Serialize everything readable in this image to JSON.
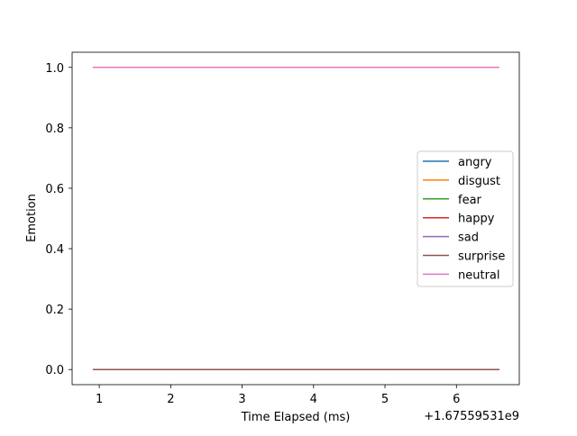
{
  "chart_data": {
    "type": "line",
    "xlabel": "Time Elapsed (ms)",
    "ylabel": "Emotion",
    "x_offset_label": "+1.67559531e9",
    "xlim": [
      0.62,
      6.88
    ],
    "ylim": [
      -0.05,
      1.05
    ],
    "x_ticks": [
      1,
      2,
      3,
      4,
      5,
      6
    ],
    "x_tick_labels": [
      "1",
      "2",
      "3",
      "4",
      "5",
      "6"
    ],
    "y_ticks": [
      0.0,
      0.2,
      0.4,
      0.6,
      0.8,
      1.0
    ],
    "y_tick_labels": [
      "0.0",
      "0.2",
      "0.4",
      "0.6",
      "0.8",
      "1.0"
    ],
    "grid": false,
    "legend_position": "center-right",
    "x": [
      0.91,
      6.6
    ],
    "series": [
      {
        "name": "angry",
        "color": "#1f77b4",
        "values": [
          0,
          0
        ]
      },
      {
        "name": "disgust",
        "color": "#ff7f0e",
        "values": [
          0,
          0
        ]
      },
      {
        "name": "fear",
        "color": "#2ca02c",
        "values": [
          0,
          0
        ]
      },
      {
        "name": "happy",
        "color": "#d62728",
        "values": [
          0,
          0
        ]
      },
      {
        "name": "sad",
        "color": "#9467bd",
        "values": [
          0,
          0
        ]
      },
      {
        "name": "surprise",
        "color": "#8c564b",
        "values": [
          0,
          0
        ]
      },
      {
        "name": "neutral",
        "color": "#e377c2",
        "values": [
          1,
          1
        ]
      }
    ]
  }
}
